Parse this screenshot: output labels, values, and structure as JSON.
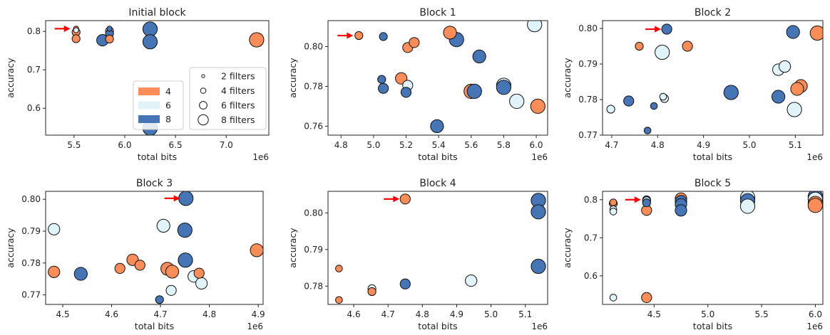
{
  "colors": {
    "4": "#fc8d59",
    "6": "#e0f3f8",
    "8": "#4575b4",
    "arrow": "#ff0000"
  },
  "legend": {
    "color_entries": [
      {
        "label": "4",
        "key": "4"
      },
      {
        "label": "6",
        "key": "6"
      },
      {
        "label": "8",
        "key": "8"
      }
    ],
    "size_entries": [
      {
        "label": "2 filters",
        "filters": 2
      },
      {
        "label": "4 filters",
        "filters": 4
      },
      {
        "label": "6 filters",
        "filters": 6
      },
      {
        "label": "8 filters",
        "filters": 8
      }
    ]
  },
  "chart_data": [
    {
      "type": "scatter",
      "title": "Initial block",
      "xlabel": "total bits",
      "ylabel": "accuracy",
      "x_scale_label": "1e6",
      "xlim": [
        5.22,
        7.42
      ],
      "ylim": [
        0.53,
        0.828
      ],
      "xticks": [
        "5.5",
        "6.0",
        "6.5",
        "7.0"
      ],
      "xtick_values": [
        5.5,
        6.0,
        6.5,
        7.0
      ],
      "yticks": [
        "0.6",
        "0.7",
        "0.8"
      ],
      "ytick_values": [
        0.6,
        0.7,
        0.8
      ],
      "arrow": {
        "x": 5.52,
        "y": 0.807
      },
      "points": [
        {
          "x": 5.52,
          "y": 0.807,
          "bits": 4,
          "filters": 2
        },
        {
          "x": 5.52,
          "y": 0.803,
          "bits": 6,
          "filters": 2
        },
        {
          "x": 5.52,
          "y": 0.798,
          "bits": 4,
          "filters": 4
        },
        {
          "x": 5.52,
          "y": 0.781,
          "bits": 4,
          "filters": 4
        },
        {
          "x": 5.85,
          "y": 0.807,
          "bits": 8,
          "filters": 2
        },
        {
          "x": 5.85,
          "y": 0.801,
          "bits": 6,
          "filters": 4
        },
        {
          "x": 5.85,
          "y": 0.794,
          "bits": 8,
          "filters": 4
        },
        {
          "x": 5.85,
          "y": 0.78,
          "bits": 4,
          "filters": 4
        },
        {
          "x": 5.78,
          "y": 0.777,
          "bits": 8,
          "filters": 6
        },
        {
          "x": 6.25,
          "y": 0.806,
          "bits": 8,
          "filters": 8
        },
        {
          "x": 6.25,
          "y": 0.773,
          "bits": 8,
          "filters": 8
        },
        {
          "x": 6.25,
          "y": 0.548,
          "bits": 8,
          "filters": 8
        },
        {
          "x": 7.3,
          "y": 0.778,
          "bits": 4,
          "filters": 8
        }
      ]
    },
    {
      "type": "scatter",
      "title": "Block 1",
      "xlabel": "total bits",
      "ylabel": "accuracy",
      "x_scale_label": "1e6",
      "xlim": [
        4.72,
        6.07
      ],
      "ylim": [
        0.7555,
        0.813
      ],
      "xticks": [
        "4.8",
        "5.0",
        "5.2",
        "5.4",
        "5.6",
        "5.8",
        "6.0"
      ],
      "xtick_values": [
        4.8,
        5.0,
        5.2,
        5.4,
        5.6,
        5.8,
        6.0
      ],
      "yticks": [
        "0.76",
        "0.78",
        "0.80"
      ],
      "ytick_values": [
        0.76,
        0.78,
        0.8
      ],
      "arrow": {
        "x": 4.91,
        "y": 0.8055
      },
      "points": [
        {
          "x": 4.91,
          "y": 0.8055,
          "bits": 4,
          "filters": 4
        },
        {
          "x": 5.06,
          "y": 0.805,
          "bits": 8,
          "filters": 4
        },
        {
          "x": 5.05,
          "y": 0.7835,
          "bits": 8,
          "filters": 4
        },
        {
          "x": 5.06,
          "y": 0.779,
          "bits": 8,
          "filters": 5
        },
        {
          "x": 5.17,
          "y": 0.784,
          "bits": 4,
          "filters": 6
        },
        {
          "x": 5.21,
          "y": 0.7995,
          "bits": 4,
          "filters": 5
        },
        {
          "x": 5.25,
          "y": 0.802,
          "bits": 4,
          "filters": 5
        },
        {
          "x": 5.21,
          "y": 0.7805,
          "bits": 6,
          "filters": 5
        },
        {
          "x": 5.2,
          "y": 0.777,
          "bits": 8,
          "filters": 5
        },
        {
          "x": 5.47,
          "y": 0.807,
          "bits": 4,
          "filters": 7
        },
        {
          "x": 5.51,
          "y": 0.8035,
          "bits": 8,
          "filters": 8
        },
        {
          "x": 5.39,
          "y": 0.76,
          "bits": 8,
          "filters": 7
        },
        {
          "x": 5.6,
          "y": 0.7775,
          "bits": 4,
          "filters": 8
        },
        {
          "x": 5.62,
          "y": 0.7775,
          "bits": 8,
          "filters": 8
        },
        {
          "x": 5.65,
          "y": 0.795,
          "bits": 8,
          "filters": 7
        },
        {
          "x": 5.8,
          "y": 0.7805,
          "bits": 6,
          "filters": 8
        },
        {
          "x": 5.8,
          "y": 0.7795,
          "bits": 8,
          "filters": 8
        },
        {
          "x": 5.88,
          "y": 0.7725,
          "bits": 6,
          "filters": 8
        },
        {
          "x": 5.99,
          "y": 0.811,
          "bits": 6,
          "filters": 8
        },
        {
          "x": 6.01,
          "y": 0.77,
          "bits": 4,
          "filters": 8
        }
      ]
    },
    {
      "type": "scatter",
      "title": "Block 2",
      "xlabel": "total bits",
      "ylabel": "accuracy",
      "x_scale_label": "1e6",
      "xlim": [
        4.68,
        5.16
      ],
      "ylim": [
        0.77,
        0.8022
      ],
      "xticks": [
        "4.7",
        "4.8",
        "4.9",
        "5.0",
        "5.1"
      ],
      "xtick_values": [
        4.7,
        4.8,
        4.9,
        5.0,
        5.1
      ],
      "yticks": [
        "0.77",
        "0.78",
        "0.79",
        "0.80"
      ],
      "ytick_values": [
        0.77,
        0.78,
        0.79,
        0.8
      ],
      "arrow": {
        "x": 4.82,
        "y": 0.7998
      },
      "points": [
        {
          "x": 4.82,
          "y": 0.7998,
          "bits": 8,
          "filters": 5
        },
        {
          "x": 4.76,
          "y": 0.795,
          "bits": 4,
          "filters": 4
        },
        {
          "x": 4.81,
          "y": 0.7933,
          "bits": 6,
          "filters": 8
        },
        {
          "x": 4.865,
          "y": 0.795,
          "bits": 4,
          "filters": 5
        },
        {
          "x": 4.698,
          "y": 0.7773,
          "bits": 6,
          "filters": 4
        },
        {
          "x": 4.737,
          "y": 0.7796,
          "bits": 8,
          "filters": 5
        },
        {
          "x": 4.778,
          "y": 0.7713,
          "bits": 8,
          "filters": 3
        },
        {
          "x": 4.792,
          "y": 0.7782,
          "bits": 8,
          "filters": 3
        },
        {
          "x": 4.812,
          "y": 0.7808,
          "bits": 6,
          "filters": 3
        },
        {
          "x": 4.815,
          "y": 0.7803,
          "bits": 6,
          "filters": 4
        },
        {
          "x": 4.96,
          "y": 0.782,
          "bits": 8,
          "filters": 8
        },
        {
          "x": 5.063,
          "y": 0.7884,
          "bits": 6,
          "filters": 6
        },
        {
          "x": 5.077,
          "y": 0.7893,
          "bits": 6,
          "filters": 6
        },
        {
          "x": 5.063,
          "y": 0.7808,
          "bits": 8,
          "filters": 7
        },
        {
          "x": 5.095,
          "y": 0.799,
          "bits": 8,
          "filters": 7
        },
        {
          "x": 5.098,
          "y": 0.7772,
          "bits": 6,
          "filters": 8
        },
        {
          "x": 5.112,
          "y": 0.7838,
          "bits": 4,
          "filters": 7
        },
        {
          "x": 5.104,
          "y": 0.783,
          "bits": 4,
          "filters": 7
        },
        {
          "x": 5.148,
          "y": 0.7987,
          "bits": 4,
          "filters": 8
        }
      ]
    },
    {
      "type": "scatter",
      "title": "Block 3",
      "xlabel": "total bits",
      "ylabel": "accuracy",
      "x_scale_label": "1e6",
      "xlim": [
        4.465,
        4.91
      ],
      "ylim": [
        0.767,
        0.8025
      ],
      "xticks": [
        "4.5",
        "4.6",
        "4.7",
        "4.8",
        "4.9"
      ],
      "xtick_values": [
        4.5,
        4.6,
        4.7,
        4.8,
        4.9
      ],
      "yticks": [
        "0.77",
        "0.78",
        "0.79",
        "0.80"
      ],
      "ytick_values": [
        0.77,
        0.78,
        0.79,
        0.8
      ],
      "arrow": {
        "x": 4.752,
        "y": 0.8003
      },
      "points": [
        {
          "x": 4.752,
          "y": 0.8003,
          "bits": 8,
          "filters": 8
        },
        {
          "x": 4.482,
          "y": 0.7906,
          "bits": 6,
          "filters": 6
        },
        {
          "x": 4.482,
          "y": 0.7772,
          "bits": 4,
          "filters": 6
        },
        {
          "x": 4.537,
          "y": 0.7766,
          "bits": 8,
          "filters": 7
        },
        {
          "x": 4.617,
          "y": 0.7783,
          "bits": 4,
          "filters": 5
        },
        {
          "x": 4.643,
          "y": 0.781,
          "bits": 4,
          "filters": 6
        },
        {
          "x": 4.658,
          "y": 0.7793,
          "bits": 4,
          "filters": 5
        },
        {
          "x": 4.698,
          "y": 0.7685,
          "bits": 8,
          "filters": 4
        },
        {
          "x": 4.706,
          "y": 0.7917,
          "bits": 6,
          "filters": 7
        },
        {
          "x": 4.714,
          "y": 0.7782,
          "bits": 4,
          "filters": 7
        },
        {
          "x": 4.724,
          "y": 0.7773,
          "bits": 4,
          "filters": 7
        },
        {
          "x": 4.722,
          "y": 0.7714,
          "bits": 6,
          "filters": 5
        },
        {
          "x": 4.75,
          "y": 0.7903,
          "bits": 8,
          "filters": 8
        },
        {
          "x": 4.751,
          "y": 0.7809,
          "bits": 8,
          "filters": 8
        },
        {
          "x": 4.768,
          "y": 0.7758,
          "bits": 6,
          "filters": 6
        },
        {
          "x": 4.779,
          "y": 0.7768,
          "bits": 4,
          "filters": 5
        },
        {
          "x": 4.784,
          "y": 0.7736,
          "bits": 6,
          "filters": 6
        },
        {
          "x": 4.897,
          "y": 0.784,
          "bits": 4,
          "filters": 7
        }
      ]
    },
    {
      "type": "scatter",
      "title": "Block 4",
      "xlabel": "total bits",
      "ylabel": "accuracy",
      "x_scale_label": "1e6",
      "xlim": [
        4.525,
        5.165
      ],
      "ylim": [
        0.775,
        0.8059
      ],
      "xticks": [
        "4.6",
        "4.7",
        "4.8",
        "4.9",
        "5.0",
        "5.1"
      ],
      "xtick_values": [
        4.6,
        4.7,
        4.8,
        4.9,
        5.0,
        5.1
      ],
      "yticks": [
        "0.78",
        "0.79",
        "0.80"
      ],
      "ytick_values": [
        0.78,
        0.79,
        0.8
      ],
      "arrow": {
        "x": 4.75,
        "y": 0.8038
      },
      "points": [
        {
          "x": 4.75,
          "y": 0.8038,
          "bits": 4,
          "filters": 5
        },
        {
          "x": 4.557,
          "y": 0.7848,
          "bits": 4,
          "filters": 3
        },
        {
          "x": 4.557,
          "y": 0.7762,
          "bits": 4,
          "filters": 3
        },
        {
          "x": 4.653,
          "y": 0.7793,
          "bits": 6,
          "filters": 4
        },
        {
          "x": 4.653,
          "y": 0.7785,
          "bits": 4,
          "filters": 4
        },
        {
          "x": 4.75,
          "y": 0.7806,
          "bits": 8,
          "filters": 5
        },
        {
          "x": 4.942,
          "y": 0.7815,
          "bits": 6,
          "filters": 6
        },
        {
          "x": 5.138,
          "y": 0.8034,
          "bits": 8,
          "filters": 8
        },
        {
          "x": 5.138,
          "y": 0.8003,
          "bits": 8,
          "filters": 8
        },
        {
          "x": 5.138,
          "y": 0.7854,
          "bits": 8,
          "filters": 8
        }
      ]
    },
    {
      "type": "scatter",
      "title": "Block 5",
      "xlabel": "total bits",
      "ylabel": "accuracy",
      "x_scale_label": "1e6",
      "xlim": [
        4.02,
        6.07
      ],
      "ylim": [
        0.525,
        0.822
      ],
      "xticks": [
        "4.5",
        "5.0",
        "5.5",
        "6.0"
      ],
      "xtick_values": [
        4.5,
        5.0,
        5.5,
        6.0
      ],
      "yticks": [
        "0.6",
        "0.7",
        "0.8"
      ],
      "ytick_values": [
        0.6,
        0.7,
        0.8
      ],
      "arrow": {
        "x": 4.43,
        "y": 0.8
      },
      "points": [
        {
          "x": 4.12,
          "y": 0.793,
          "bits": 4,
          "filters": 3
        },
        {
          "x": 4.12,
          "y": 0.79,
          "bits": 4,
          "filters": 4
        },
        {
          "x": 4.12,
          "y": 0.775,
          "bits": 6,
          "filters": 3
        },
        {
          "x": 4.12,
          "y": 0.769,
          "bits": 6,
          "filters": 3
        },
        {
          "x": 4.12,
          "y": 0.543,
          "bits": 6,
          "filters": 3
        },
        {
          "x": 4.43,
          "y": 0.8,
          "bits": 8,
          "filters": 4
        },
        {
          "x": 4.43,
          "y": 0.797,
          "bits": 6,
          "filters": 4
        },
        {
          "x": 4.43,
          "y": 0.792,
          "bits": 8,
          "filters": 4
        },
        {
          "x": 4.43,
          "y": 0.772,
          "bits": 4,
          "filters": 5
        },
        {
          "x": 4.43,
          "y": 0.543,
          "bits": 4,
          "filters": 5
        },
        {
          "x": 4.75,
          "y": 0.803,
          "bits": 4,
          "filters": 6
        },
        {
          "x": 4.75,
          "y": 0.796,
          "bits": 8,
          "filters": 6
        },
        {
          "x": 4.75,
          "y": 0.788,
          "bits": 8,
          "filters": 6
        },
        {
          "x": 4.75,
          "y": 0.772,
          "bits": 8,
          "filters": 6
        },
        {
          "x": 5.37,
          "y": 0.806,
          "bits": 6,
          "filters": 8
        },
        {
          "x": 5.37,
          "y": 0.797,
          "bits": 8,
          "filters": 8
        },
        {
          "x": 5.37,
          "y": 0.783,
          "bits": 6,
          "filters": 8
        },
        {
          "x": 6.0,
          "y": 0.808,
          "bits": 8,
          "filters": 8
        },
        {
          "x": 6.0,
          "y": 0.801,
          "bits": 6,
          "filters": 8
        },
        {
          "x": 6.0,
          "y": 0.79,
          "bits": 4,
          "filters": 8
        },
        {
          "x": 6.0,
          "y": 0.785,
          "bits": 4,
          "filters": 8
        }
      ]
    }
  ]
}
